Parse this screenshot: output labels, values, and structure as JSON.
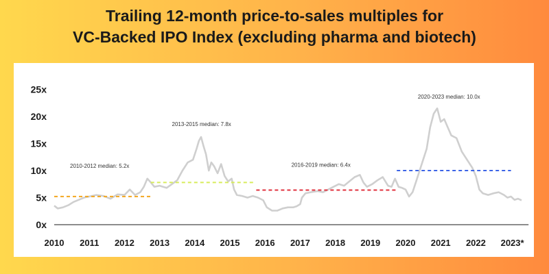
{
  "title_line1": "Trailing 12-month price-to-sales multiples for",
  "title_line2": "VC-Backed IPO Index (excluding pharma and biotech)",
  "chart_data": {
    "type": "line",
    "title": "Trailing 12-month price-to-sales multiples for VC-Backed IPO Index (excluding pharma and biotech)",
    "xlabel": "",
    "ylabel": "",
    "x_ticks": [
      "2010",
      "2011",
      "2012",
      "2013",
      "2014",
      "2015",
      "2016",
      "2017",
      "2018",
      "2019",
      "2020",
      "2021",
      "2022",
      "2023*"
    ],
    "y_ticks": [
      "0x",
      "5x",
      "10x",
      "15x",
      "20x",
      "25x"
    ],
    "xlim": [
      2010,
      2023.5
    ],
    "ylim": [
      0,
      25
    ],
    "grid": false,
    "line_color": "#cfcfcf",
    "series": [
      {
        "values": [
          [
            2010.0,
            3.5
          ],
          [
            2010.1,
            3.0
          ],
          [
            2010.25,
            3.2
          ],
          [
            2010.4,
            3.6
          ],
          [
            2010.55,
            4.2
          ],
          [
            2010.7,
            4.6
          ],
          [
            2010.85,
            5.0
          ],
          [
            2011.0,
            5.2
          ],
          [
            2011.2,
            5.5
          ],
          [
            2011.4,
            5.3
          ],
          [
            2011.6,
            4.8
          ],
          [
            2011.8,
            5.6
          ],
          [
            2012.0,
            5.5
          ],
          [
            2012.15,
            6.5
          ],
          [
            2012.3,
            5.5
          ],
          [
            2012.45,
            6.0
          ],
          [
            2012.55,
            7.0
          ],
          [
            2012.65,
            8.5
          ],
          [
            2012.75,
            7.8
          ],
          [
            2012.85,
            7.0
          ],
          [
            2013.0,
            7.2
          ],
          [
            2013.1,
            7.0
          ],
          [
            2013.2,
            6.8
          ],
          [
            2013.35,
            7.5
          ],
          [
            2013.5,
            8.2
          ],
          [
            2013.65,
            10.0
          ],
          [
            2013.8,
            11.5
          ],
          [
            2013.95,
            12.0
          ],
          [
            2014.05,
            14.0
          ],
          [
            2014.12,
            15.5
          ],
          [
            2014.18,
            16.2
          ],
          [
            2014.25,
            14.5
          ],
          [
            2014.32,
            13.0
          ],
          [
            2014.4,
            10.0
          ],
          [
            2014.47,
            11.5
          ],
          [
            2014.55,
            10.8
          ],
          [
            2014.65,
            9.5
          ],
          [
            2014.75,
            11.2
          ],
          [
            2014.85,
            9.0
          ],
          [
            2014.95,
            8.0
          ],
          [
            2015.05,
            8.5
          ],
          [
            2015.12,
            6.5
          ],
          [
            2015.2,
            5.5
          ],
          [
            2015.35,
            5.3
          ],
          [
            2015.5,
            5.0
          ],
          [
            2015.65,
            5.3
          ],
          [
            2015.8,
            5.0
          ],
          [
            2015.95,
            4.5
          ],
          [
            2016.05,
            3.2
          ],
          [
            2016.2,
            2.6
          ],
          [
            2016.35,
            2.6
          ],
          [
            2016.5,
            3.0
          ],
          [
            2016.65,
            3.2
          ],
          [
            2016.8,
            3.2
          ],
          [
            2016.9,
            3.4
          ],
          [
            2017.0,
            3.8
          ],
          [
            2017.05,
            5.0
          ],
          [
            2017.15,
            5.8
          ],
          [
            2017.3,
            6.0
          ],
          [
            2017.5,
            6.2
          ],
          [
            2017.65,
            6.0
          ],
          [
            2017.8,
            6.5
          ],
          [
            2017.95,
            7.0
          ],
          [
            2018.1,
            7.5
          ],
          [
            2018.25,
            7.2
          ],
          [
            2018.4,
            8.0
          ],
          [
            2018.55,
            8.8
          ],
          [
            2018.7,
            9.2
          ],
          [
            2018.8,
            7.8
          ],
          [
            2018.9,
            7.0
          ],
          [
            2019.05,
            7.5
          ],
          [
            2019.2,
            8.2
          ],
          [
            2019.35,
            8.8
          ],
          [
            2019.5,
            7.2
          ],
          [
            2019.6,
            7.0
          ],
          [
            2019.7,
            8.5
          ],
          [
            2019.8,
            7.0
          ],
          [
            2019.9,
            6.8
          ],
          [
            2020.0,
            6.5
          ],
          [
            2020.1,
            5.2
          ],
          [
            2020.2,
            6.0
          ],
          [
            2020.3,
            8.0
          ],
          [
            2020.4,
            10.0
          ],
          [
            2020.5,
            12.0
          ],
          [
            2020.6,
            14.0
          ],
          [
            2020.7,
            18.0
          ],
          [
            2020.8,
            20.5
          ],
          [
            2020.9,
            21.5
          ],
          [
            2021.0,
            19.0
          ],
          [
            2021.1,
            19.5
          ],
          [
            2021.2,
            18.0
          ],
          [
            2021.3,
            16.5
          ],
          [
            2021.45,
            16.0
          ],
          [
            2021.6,
            13.5
          ],
          [
            2021.75,
            12.0
          ],
          [
            2021.9,
            10.5
          ],
          [
            2022.0,
            9.0
          ],
          [
            2022.1,
            6.5
          ],
          [
            2022.2,
            5.8
          ],
          [
            2022.35,
            5.5
          ],
          [
            2022.5,
            5.8
          ],
          [
            2022.65,
            6.0
          ],
          [
            2022.8,
            5.5
          ],
          [
            2022.9,
            5.0
          ],
          [
            2023.0,
            5.2
          ],
          [
            2023.1,
            4.6
          ],
          [
            2023.2,
            4.8
          ],
          [
            2023.3,
            4.5
          ]
        ]
      }
    ],
    "medians": [
      {
        "label": "2010-2012 median: 5.2x",
        "value": 5.2,
        "start": 2010.0,
        "end": 2012.75,
        "color": "#f3a61f"
      },
      {
        "label": "2013-2015 median: 7.8x",
        "value": 7.8,
        "start": 2012.75,
        "end": 2015.7,
        "color": "#d7ec5a"
      },
      {
        "label": "2016-2019 median: 6.4x",
        "value": 6.4,
        "start": 2015.75,
        "end": 2019.75,
        "color": "#e0303c"
      },
      {
        "label": "2020-2023 median: 10.0x",
        "value": 10.0,
        "start": 2019.75,
        "end": 2023.0,
        "color": "#3b63e6"
      }
    ]
  }
}
